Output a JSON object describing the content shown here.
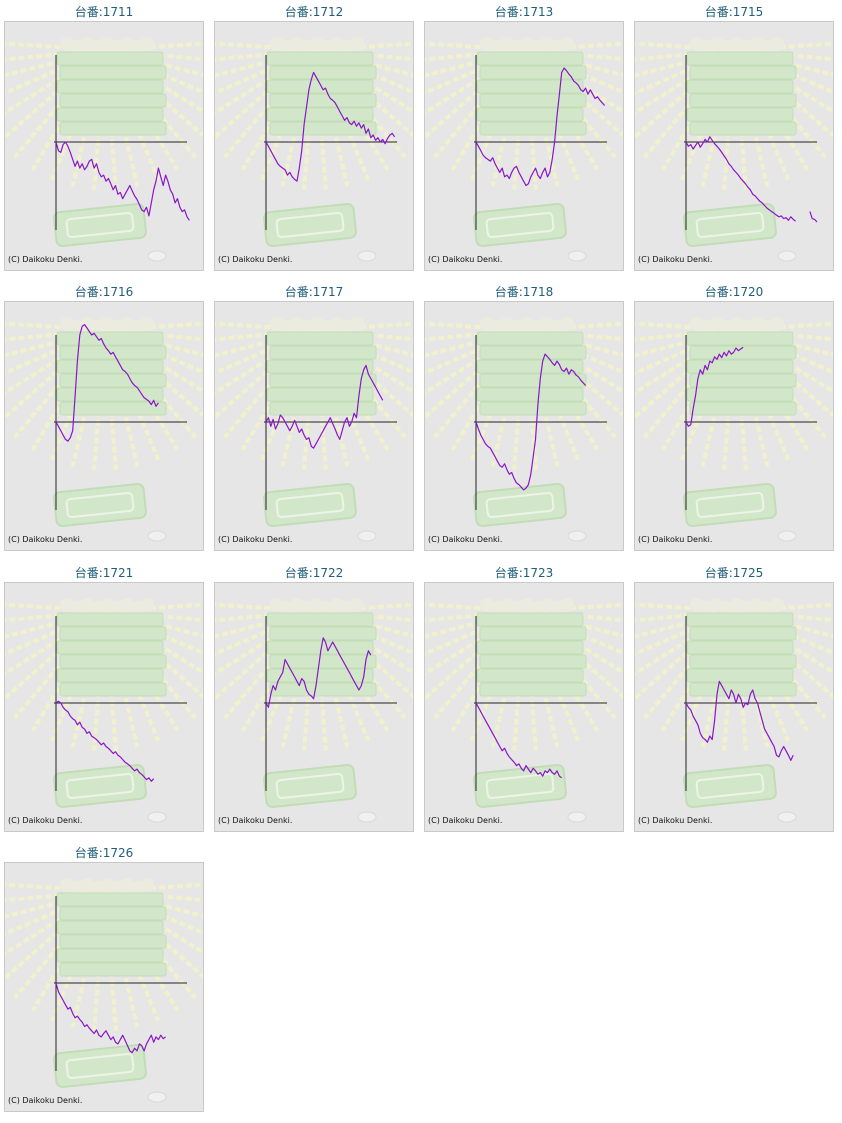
{
  "copyright": "(C) Daikoku Denki.",
  "colors": {
    "line": "#8a16c8",
    "axis": "#222222",
    "panel_bg": "#e6e6e6",
    "title": "#1f5f7a",
    "art_green": "#cfe8c4",
    "art_ray": "#f4f4c8"
  },
  "chart_data": [
    {
      "type": "line",
      "title": "台番:1711",
      "values": [
        0,
        -10,
        -12,
        -3,
        0,
        -5,
        -12,
        -20,
        -28,
        -22,
        -30,
        -25,
        -32,
        -28,
        -22,
        -20,
        -30,
        -25,
        -35,
        -40,
        -38,
        -45,
        -42,
        -48,
        -55,
        -50,
        -60,
        -58,
        -65,
        -60,
        -55,
        -50,
        -56,
        -62,
        -66,
        -72,
        -78,
        -80,
        -75,
        -85,
        -70,
        -55,
        -45,
        -30,
        -40,
        -50,
        -38,
        -45,
        -55,
        -60,
        -70,
        -65,
        -75,
        -80,
        -78,
        -86,
        -90
      ]
    },
    {
      "type": "line",
      "title": "台番:1712",
      "values": [
        0,
        -5,
        -10,
        -15,
        -20,
        -25,
        -28,
        -30,
        -32,
        -38,
        -35,
        -40,
        -43,
        -45,
        -30,
        -10,
        20,
        40,
        60,
        72,
        80,
        75,
        70,
        65,
        60,
        62,
        55,
        50,
        48,
        45,
        40,
        35,
        30,
        25,
        28,
        22,
        20,
        24,
        18,
        22,
        16,
        20,
        10,
        15,
        5,
        8,
        2,
        5,
        0,
        3,
        -2,
        4,
        8,
        10,
        6
      ]
    },
    {
      "type": "line",
      "title": "台番:1713",
      "values": [
        0,
        -5,
        -10,
        -15,
        -18,
        -20,
        -22,
        -18,
        -25,
        -30,
        -35,
        -30,
        -40,
        -38,
        -42,
        -35,
        -30,
        -28,
        -35,
        -40,
        -45,
        -50,
        -48,
        -40,
        -35,
        -30,
        -38,
        -42,
        -35,
        -30,
        -40,
        -35,
        -20,
        0,
        30,
        55,
        80,
        85,
        82,
        78,
        75,
        70,
        68,
        65,
        60,
        58,
        62,
        55,
        60,
        55,
        50,
        52,
        48,
        45,
        42
      ]
    },
    {
      "type": "line",
      "title": "台番:1715",
      "values": [
        0,
        -5,
        -3,
        -8,
        -4,
        0,
        -6,
        -2,
        3,
        0,
        6,
        2,
        -2,
        -5,
        -8,
        -12,
        -16,
        -20,
        -25,
        -28,
        -32,
        -35,
        -38,
        -42,
        -45,
        -48,
        -52,
        -55,
        -60,
        -62,
        -65,
        -68,
        -70,
        -73,
        -76,
        -78,
        -80,
        -82,
        -84,
        -86,
        -85,
        -88,
        -87,
        -90,
        -86,
        -89,
        -91,
        null,
        null,
        null,
        null,
        null,
        -80,
        -88,
        -89,
        -92
      ]
    },
    {
      "type": "line",
      "title": "台番:1716",
      "values": [
        0,
        -5,
        -10,
        -15,
        -20,
        -22,
        -18,
        -10,
        30,
        70,
        100,
        110,
        112,
        108,
        104,
        100,
        102,
        98,
        94,
        96,
        90,
        85,
        82,
        78,
        80,
        75,
        70,
        65,
        60,
        58,
        55,
        50,
        45,
        42,
        40,
        36,
        32,
        28,
        26,
        24,
        20,
        25,
        18,
        22
      ]
    },
    {
      "type": "line",
      "title": "台番:1717",
      "values": [
        0,
        5,
        -5,
        3,
        -8,
        -2,
        8,
        5,
        0,
        -5,
        -10,
        -5,
        2,
        -5,
        -12,
        -8,
        -15,
        -20,
        -18,
        -28,
        -30,
        -25,
        -20,
        -15,
        -10,
        -5,
        0,
        5,
        -2,
        -8,
        -15,
        -20,
        -10,
        0,
        5,
        -5,
        0,
        10,
        5,
        30,
        50,
        60,
        65,
        55,
        50,
        45,
        40,
        35,
        30,
        25
      ]
    },
    {
      "type": "line",
      "title": "台番:1718",
      "values": [
        0,
        -8,
        -15,
        -20,
        -25,
        -28,
        -30,
        -35,
        -40,
        -45,
        -50,
        -52,
        -48,
        -55,
        -60,
        -58,
        -65,
        -70,
        -72,
        -75,
        -78,
        -76,
        -72,
        -60,
        -40,
        -20,
        20,
        50,
        70,
        78,
        75,
        72,
        68,
        65,
        70,
        66,
        60,
        58,
        62,
        55,
        60,
        58,
        54,
        52,
        48,
        45,
        42
      ]
    },
    {
      "type": "line",
      "title": "台番:1720",
      "values": [
        0,
        -5,
        -3,
        15,
        30,
        50,
        60,
        55,
        65,
        60,
        70,
        68,
        75,
        72,
        78,
        74,
        80,
        76,
        82,
        78,
        80,
        85,
        82,
        84,
        86
      ]
    },
    {
      "type": "line",
      "title": "台番:1721",
      "values": [
        0,
        2,
        0,
        -5,
        -8,
        -10,
        -15,
        -18,
        -20,
        -25,
        -22,
        -28,
        -30,
        -35,
        -33,
        -38,
        -40,
        -42,
        -45,
        -48,
        -46,
        -50,
        -52,
        -55,
        -58,
        -56,
        -60,
        -62,
        -65,
        -68,
        -70,
        -72,
        -75,
        -78,
        -76,
        -80,
        -82,
        -85,
        -88,
        -86,
        -90,
        -87
      ]
    },
    {
      "type": "line",
      "title": "台番:1722",
      "values": [
        0,
        -5,
        10,
        20,
        15,
        25,
        30,
        35,
        50,
        45,
        40,
        35,
        30,
        25,
        20,
        28,
        25,
        15,
        10,
        8,
        5,
        20,
        40,
        60,
        75,
        70,
        60,
        65,
        70,
        65,
        60,
        55,
        50,
        45,
        40,
        35,
        30,
        25,
        20,
        15,
        20,
        30,
        50,
        60,
        55
      ]
    },
    {
      "type": "line",
      "title": "台番:1723",
      "values": [
        0,
        -5,
        -10,
        -15,
        -20,
        -25,
        -30,
        -35,
        -40,
        -45,
        -50,
        -55,
        -52,
        -58,
        -62,
        -65,
        -68,
        -72,
        -70,
        -75,
        -78,
        -72,
        -76,
        -80,
        -75,
        -78,
        -82,
        -80,
        -84,
        -78,
        -80,
        -76,
        -80,
        -82,
        -78,
        -84,
        -86
      ]
    },
    {
      "type": "line",
      "title": "台番:1725",
      "values": [
        0,
        -5,
        -8,
        -15,
        -20,
        -25,
        -35,
        -40,
        -42,
        -45,
        -38,
        -42,
        -20,
        10,
        25,
        20,
        15,
        10,
        5,
        15,
        10,
        0,
        10,
        5,
        -5,
        0,
        -2,
        10,
        15,
        5,
        0,
        -10,
        -20,
        -30,
        -35,
        -40,
        -45,
        -50,
        -60,
        -62,
        -55,
        -50,
        -55,
        -60,
        -66,
        -60
      ]
    },
    {
      "type": "line",
      "title": "台番:1726",
      "values": [
        0,
        -10,
        -15,
        -20,
        -25,
        -30,
        -28,
        -35,
        -40,
        -38,
        -42,
        -45,
        -50,
        -48,
        -52,
        -55,
        -58,
        -54,
        -60,
        -62,
        -58,
        -55,
        -60,
        -65,
        -62,
        -68,
        -70,
        -65,
        -60,
        -66,
        -72,
        -78,
        -80,
        -75,
        -78,
        -70,
        -72,
        -78,
        -70,
        -65,
        -60,
        -68,
        -62,
        -65,
        -60,
        -64,
        -62
      ]
    }
  ]
}
